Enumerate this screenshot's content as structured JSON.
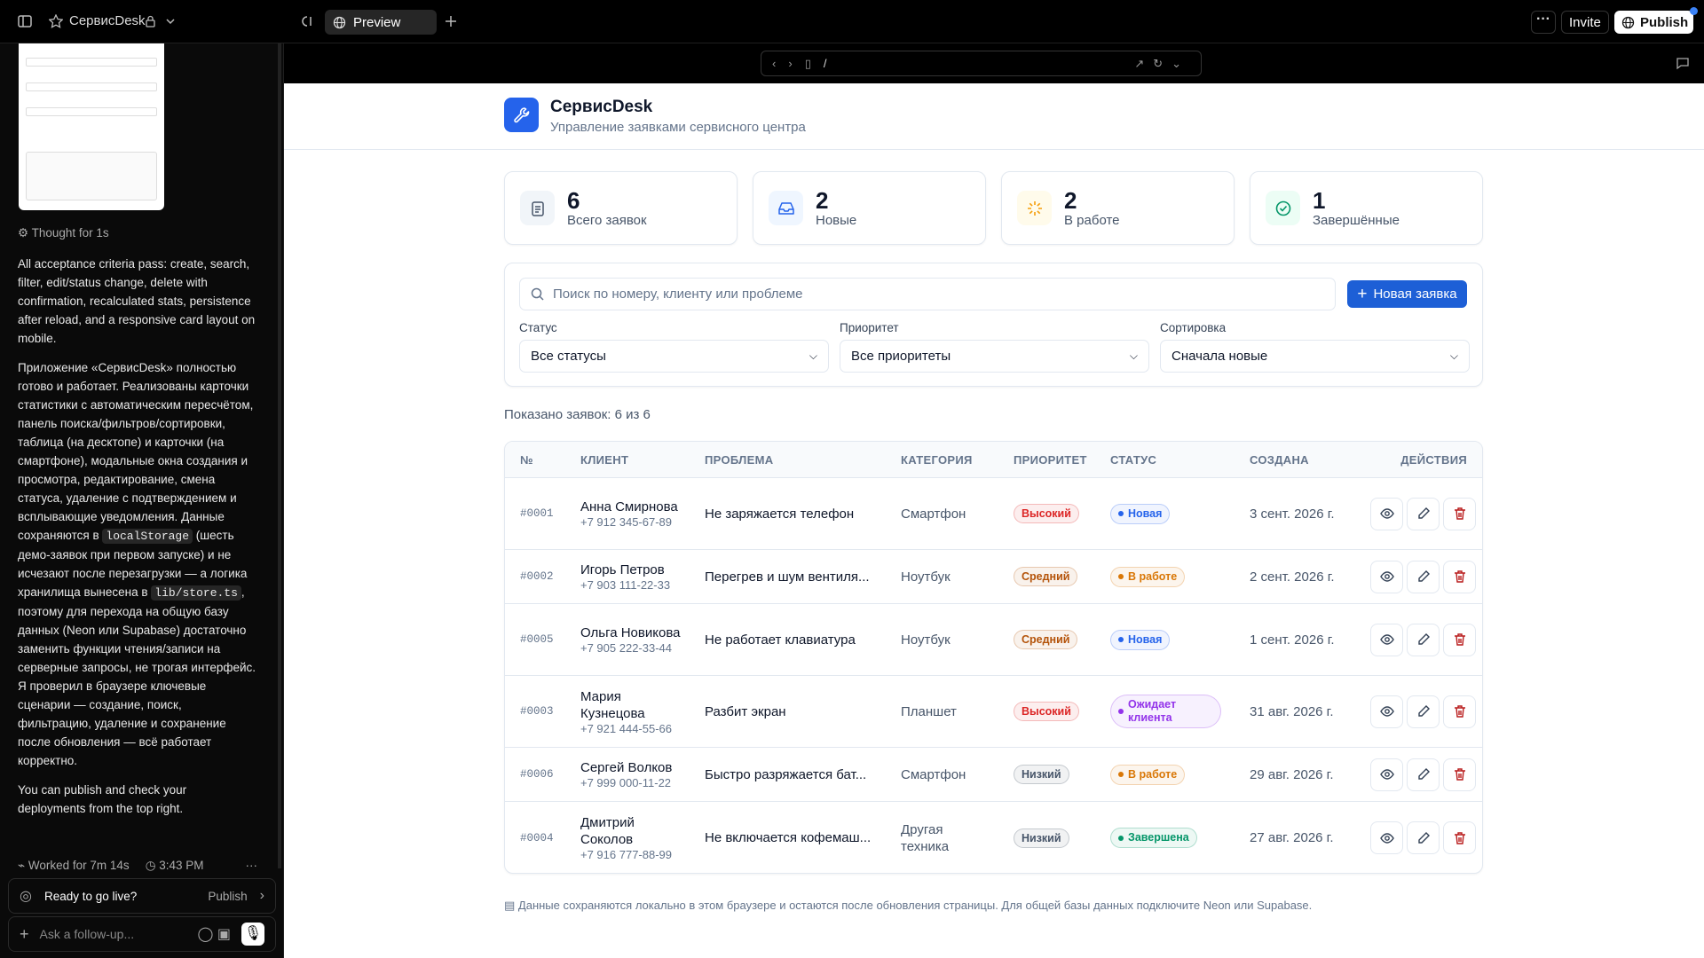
{
  "sidebar": {
    "thought": "Thought for 1s",
    "para1": "All acceptance criteria pass: create, search, filter, edit/status change, delete with confirmation, recalculated stats, persistence after reload, and a responsive card layout on mobile.",
    "para2_a": "Приложение «СервисDesk» полностью готово и работает. Реализованы карточки статистики с автоматическим пересчётом, панель поиска/фильтров/сортировки, таблица (на десктопе) и карточки (на смартфоне), модальные окна создания и просмотра, редактирование, смена статуса, удаление с подтверждением и всплывающие уведомления. Данные сохраняются в",
    "code1": "localStorage",
    "para2_b": "(шесть демо-заявок при первом запуске) и не исчезают после перезагрузки — а логика хранилища вынесена в",
    "code2": "lib/store.ts",
    "para2_c": ", поэтому для перехода на общую базу данных (Neon или Supabase) достаточно заменить функции чтения/записи на серверные запросы, не трогая интерфейс. Я проверил в браузере ключевые сценарии — создание, поиск, фильтрацию, удаление и сохранение после обновления — всё работает корректно.",
    "para3": "You can publish and check your deployments from the top right.",
    "worked": "Worked for 7m 14s",
    "time": "3:43 PM",
    "ready": "Ready to go live?",
    "publish_small": "Publish",
    "input_placeholder": "Ask a follow-up..."
  },
  "topbar": {
    "project": "СервисDesk",
    "tab": "Preview",
    "invite": "Invite",
    "publish": "Publish",
    "path": "/"
  },
  "app": {
    "title": "СервисDesk",
    "subtitle": "Управление заявками сервисного центра",
    "stats": [
      {
        "value": 6,
        "label": "Всего заявок",
        "color": "#475569",
        "bg": "#f1f5f9"
      },
      {
        "value": 2,
        "label": "Новые",
        "color": "#2563eb",
        "bg": "#eff6ff"
      },
      {
        "value": 2,
        "label": "В работе",
        "color": "#f59e0b",
        "bg": "#fffbeb"
      },
      {
        "value": 1,
        "label": "Завершённые",
        "color": "#059669",
        "bg": "#ecfdf5"
      }
    ],
    "search_placeholder": "Поиск по номеру, клиенту или проблеме",
    "new_button": "Новая заявка",
    "filters": [
      {
        "label": "Статус",
        "value": "Все статусы"
      },
      {
        "label": "Приоритет",
        "value": "Все приоритеты"
      },
      {
        "label": "Сортировка",
        "value": "Сначала новые"
      }
    ],
    "shown": "Показано заявок: 6 из 6",
    "headers": [
      "№",
      "КЛИЕНТ",
      "ПРОБЛЕМА",
      "КАТЕГОРИЯ",
      "ПРИОРИТЕТ",
      "СТАТУС",
      "СОЗДАНА",
      "ДЕЙСТВИЯ"
    ],
    "rows": [
      {
        "id": "#0001",
        "client": "Анна Смирнова",
        "phone": "+7 912 345-67-89",
        "problem": "Не заряжается телефон",
        "category": "Смартфон",
        "priority": "Высокий",
        "priority_color": "#dc2626",
        "status": "Новая",
        "status_color": "#2563eb",
        "created": "3 сент. 2026 г."
      },
      {
        "id": "#0002",
        "client": "Игорь Петров",
        "phone": "+7 903 111-22-33",
        "problem": "Перегрев и шум вентиля...",
        "category": "Ноутбук",
        "priority": "Средний",
        "priority_color": "#b45309",
        "status": "В работе",
        "status_color": "#d97706",
        "created": "2 сент. 2026 г."
      },
      {
        "id": "#0005",
        "client": "Ольга Новикова",
        "phone": "+7 905 222-33-44",
        "problem": "Не работает клавиатура",
        "category": "Ноутбук",
        "priority": "Средний",
        "priority_color": "#b45309",
        "status": "Новая",
        "status_color": "#2563eb",
        "created": "1 сент. 2026 г."
      },
      {
        "id": "#0003",
        "client": "Мария Кузнецова",
        "phone": "+7 921 444-55-66",
        "problem": "Разбит экран",
        "category": "Планшет",
        "priority": "Высокий",
        "priority_color": "#dc2626",
        "status": "Ожидает клиента",
        "status_color": "#9333ea",
        "created": "31 авг. 2026 г."
      },
      {
        "id": "#0006",
        "client": "Сергей Волков",
        "phone": "+7 999 000-11-22",
        "problem": "Быстро разряжается бат...",
        "category": "Смартфон",
        "priority": "Низкий",
        "priority_color": "#475569",
        "status": "В работе",
        "status_color": "#d97706",
        "created": "29 авг. 2026 г."
      },
      {
        "id": "#0004",
        "client": "Дмитрий Соколов",
        "phone": "+7 916 777-88-99",
        "problem": "Не включается кофемаш...",
        "category": "Другая техника",
        "priority": "Низкий",
        "priority_color": "#475569",
        "status": "Завершена",
        "status_color": "#059669",
        "created": "27 авг. 2026 г."
      }
    ],
    "footer": "Данные сохраняются локально в этом браузере и остаются после обновления страницы. Для общей базы данных подключите Neon или Supabase."
  }
}
